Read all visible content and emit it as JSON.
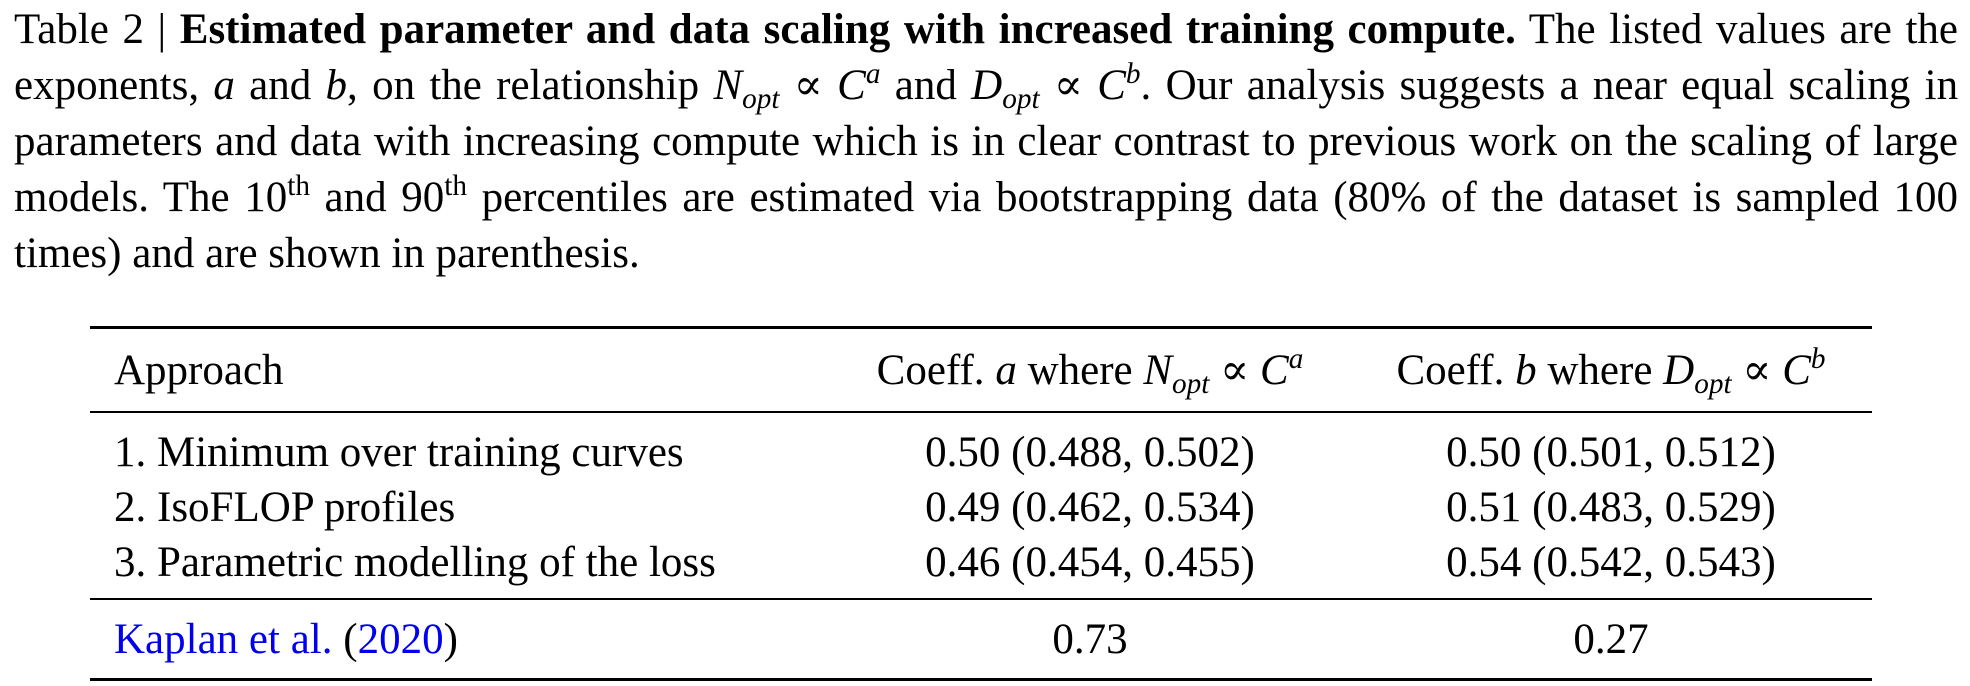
{
  "caption": {
    "label": "Table 2 |",
    "title": "Estimated parameter and data scaling with increased training compute.",
    "line1_rest": "The listed",
    "l2_a": "values are the exponents,",
    "var_a": "a",
    "l2_and": "and",
    "var_b": "b",
    "l2_on": ", on the relationship",
    "N": "N",
    "opt": "opt",
    "prop": "∝",
    "C": "C",
    "and2": "and",
    "D": "D",
    "l2_tail": ". Our analysis suggests",
    "line3": "a near equal scaling in parameters and data with increasing compute which is in clear contrast",
    "l4_a": "to previous work on the scaling of large models. The 10",
    "th": "th",
    "l4_b": "and 90",
    "l4_c": "percentiles are estimated via",
    "line5": "bootstrapping data (80% of the dataset is sampled 100 times) and are shown in parenthesis."
  },
  "table": {
    "header": {
      "approach": "Approach",
      "coeff_a_prefix": "Coeff.",
      "coeff_a_var": "a",
      "coeff_b_prefix": "Coeff.",
      "coeff_b_var": "b",
      "where": "where",
      "N": "N",
      "D": "D",
      "opt": "opt",
      "prop": "∝",
      "C": "C",
      "exp_a": "a",
      "exp_b": "b"
    },
    "rows": [
      {
        "approach": "1. Minimum over training curves",
        "a": "0.50 (0.488, 0.502)",
        "b": "0.50 (0.501, 0.512)"
      },
      {
        "approach": "2. IsoFLOP profiles",
        "a": "0.49 (0.462, 0.534)",
        "b": "0.51 (0.483, 0.529)"
      },
      {
        "approach": "3. Parametric modelling of the loss",
        "a": "0.46 (0.454, 0.455)",
        "b": "0.54 (0.542, 0.543)"
      }
    ],
    "reference": {
      "author": "Kaplan et al.",
      "open": "(",
      "year": "2020",
      "close": ")",
      "a": "0.73",
      "b": "0.27"
    }
  },
  "colors": {
    "link": "#0000ee",
    "text": "#000000"
  }
}
